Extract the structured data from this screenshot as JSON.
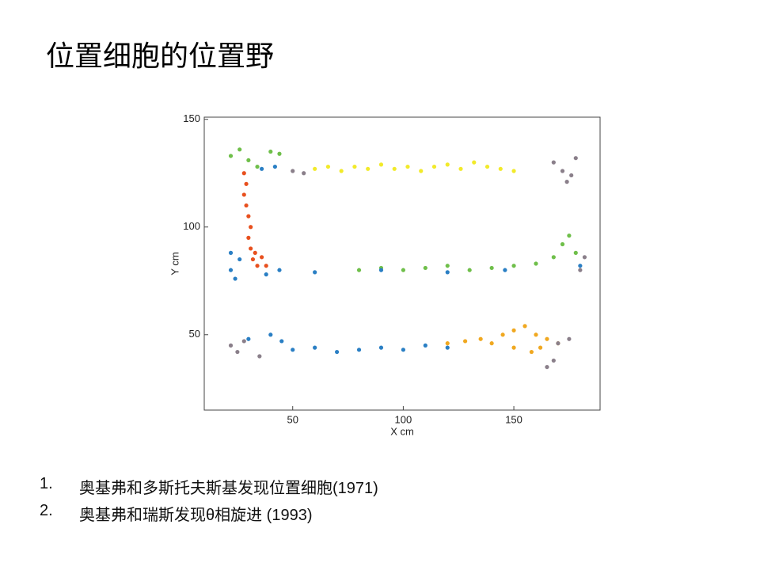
{
  "title": "位置细胞的位置野",
  "chart_data": {
    "type": "scatter",
    "xlabel": "X cm",
    "ylabel": "Y cm",
    "xlim": [
      10,
      189
    ],
    "ylim": [
      15,
      151
    ],
    "xticks": [
      50,
      100,
      150
    ],
    "yticks": [
      50,
      100,
      150
    ],
    "series": [
      {
        "color": "#f2ea2a",
        "x": [
          60,
          66,
          72,
          78,
          84,
          90,
          96,
          102,
          108,
          114,
          120,
          126,
          132,
          138,
          144,
          150
        ],
        "y": [
          127,
          128,
          126,
          128,
          127,
          129,
          127,
          128,
          126,
          128,
          129,
          127,
          130,
          128,
          127,
          126
        ]
      },
      {
        "color": "#6fbf4a",
        "x": [
          22,
          26,
          30,
          34,
          40,
          44,
          80,
          90,
          100,
          110,
          120,
          130,
          140,
          150,
          160,
          168,
          172,
          175,
          178
        ],
        "y": [
          133,
          136,
          131,
          128,
          135,
          134,
          80,
          81,
          80,
          81,
          82,
          80,
          81,
          82,
          83,
          86,
          92,
          96,
          88
        ]
      },
      {
        "color": "#e8501e",
        "x": [
          28,
          29,
          30,
          31,
          30,
          31,
          32,
          34,
          29,
          28,
          36,
          38,
          33
        ],
        "y": [
          115,
          110,
          105,
          100,
          95,
          90,
          85,
          82,
          120,
          125,
          86,
          82,
          88
        ]
      },
      {
        "color": "#2a7fc4",
        "x": [
          22,
          24,
          26,
          22,
          38,
          44,
          36,
          42,
          60,
          90,
          120,
          146,
          180,
          30,
          40,
          50,
          60,
          70,
          80,
          90,
          100,
          110,
          120,
          45
        ],
        "y": [
          80,
          76,
          85,
          88,
          78,
          80,
          127,
          128,
          79,
          80,
          79,
          80,
          82,
          48,
          50,
          43,
          44,
          42,
          43,
          44,
          43,
          45,
          44,
          47
        ]
      },
      {
        "color": "#f0a820",
        "x": [
          120,
          128,
          135,
          140,
          145,
          150,
          155,
          160,
          162,
          158,
          165,
          170,
          150
        ],
        "y": [
          46,
          47,
          48,
          46,
          50,
          52,
          54,
          50,
          44,
          42,
          48,
          46,
          44
        ]
      },
      {
        "color": "#8a7f8a",
        "x": [
          168,
          172,
          176,
          178,
          174,
          22,
          25,
          28,
          35,
          170,
          175,
          168,
          165,
          50,
          55,
          180,
          182
        ],
        "y": [
          130,
          126,
          124,
          132,
          121,
          45,
          42,
          47,
          40,
          46,
          48,
          38,
          35,
          126,
          125,
          80,
          86
        ]
      }
    ]
  },
  "list": [
    {
      "number": "1.",
      "text": "奥基弗和多斯托夫斯基发现位置细胞(1971)"
    },
    {
      "number": "2.",
      "text": "奥基弗和瑞斯发现θ相旋进 (1993)"
    }
  ]
}
